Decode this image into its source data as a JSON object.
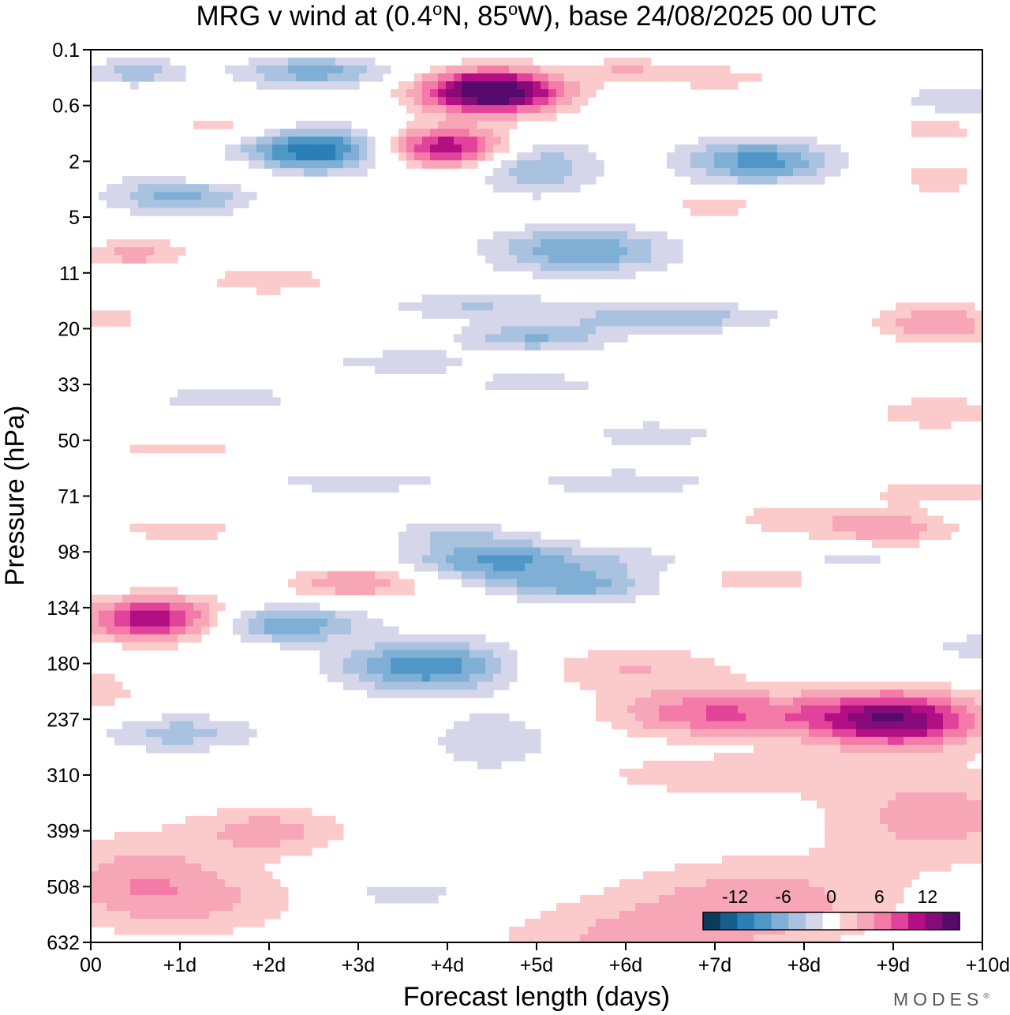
{
  "chart_data": {
    "type": "heatmap",
    "title_parts": {
      "prefix": "MRG v wind at (0.4",
      "deg1": "o",
      "mid": "N, 85",
      "deg2": "o",
      "suffix": "W),  base 24/08/2025  00 UTC"
    },
    "xlabel": "Forecast length (days)",
    "ylabel": "Pressure (hPa)",
    "x_ticks": [
      "00",
      "+1d",
      "+2d",
      "+3d",
      "+4d",
      "+5d",
      "+6d",
      "+7d",
      "+8d",
      "+9d",
      "+10d"
    ],
    "xlim": [
      0,
      10
    ],
    "y_ticks": [
      "0.1",
      "0.6",
      "2",
      "5",
      "11",
      "20",
      "33",
      "50",
      "71",
      "98",
      "134",
      "180",
      "237",
      "310",
      "399",
      "508",
      "632"
    ],
    "colorbar": {
      "labels": [
        "-12",
        "-6",
        "0",
        "6",
        "12"
      ],
      "label_values": [
        -12,
        -6,
        0,
        6,
        12
      ],
      "levels": [
        -16,
        -14,
        -12,
        -10,
        -8,
        -6,
        -4,
        -2,
        2,
        4,
        6,
        8,
        10,
        12,
        14,
        16
      ],
      "colors": [
        "#0b3a5a",
        "#155f8e",
        "#2a7fb6",
        "#4f97c6",
        "#80afd5",
        "#a9c2e0",
        "#d5d6ea",
        "#ffffff",
        "#fbcbcc",
        "#f7a6b8",
        "#f47aa8",
        "#e2439a",
        "#b30e83",
        "#870a79",
        "#550a6c"
      ]
    },
    "features": [
      {
        "x": 4.5,
        "y": 1.5,
        "value": 18,
        "sx": 0.55,
        "sy": 0.55
      },
      {
        "x": 4.0,
        "y": 3.5,
        "value": 12,
        "sx": 0.5,
        "sy": 0.5
      },
      {
        "x": 2.5,
        "y": 3.6,
        "value": -12,
        "sx": 0.55,
        "sy": 0.55
      },
      {
        "x": 2.5,
        "y": 0.8,
        "value": -7,
        "sx": 0.6,
        "sy": 0.4
      },
      {
        "x": 0.5,
        "y": 0.8,
        "value": -5,
        "sx": 0.4,
        "sy": 0.35
      },
      {
        "x": 1.0,
        "y": 5.2,
        "value": -7,
        "sx": 0.55,
        "sy": 0.5
      },
      {
        "x": 0.5,
        "y": 7.3,
        "value": 5,
        "sx": 0.4,
        "sy": 0.35
      },
      {
        "x": 1.5,
        "y": 4.5,
        "value": 4,
        "sx": 0.4,
        "sy": 0.3
      },
      {
        "x": 1.5,
        "y": 2.8,
        "value": 3,
        "sx": 0.5,
        "sy": 0.3
      },
      {
        "x": 5.5,
        "y": 7.2,
        "value": -8,
        "sx": 0.7,
        "sy": 0.6
      },
      {
        "x": 4.3,
        "y": 9.2,
        "value": -4,
        "sx": 0.7,
        "sy": 0.35
      },
      {
        "x": 5.0,
        "y": 4.2,
        "value": -6,
        "sx": 0.5,
        "sy": 0.7
      },
      {
        "x": 7.5,
        "y": 4.0,
        "value": -9,
        "sx": 0.6,
        "sy": 0.55
      },
      {
        "x": 7.0,
        "y": 1.0,
        "value": 3,
        "sx": 0.6,
        "sy": 0.35
      },
      {
        "x": 6.0,
        "y": 0.7,
        "value": 4,
        "sx": 0.3,
        "sy": 0.3
      },
      {
        "x": 9.7,
        "y": 1.8,
        "value": -4,
        "sx": 0.4,
        "sy": 0.4
      },
      {
        "x": 9.5,
        "y": 2.8,
        "value": 3,
        "sx": 0.4,
        "sy": 0.35
      },
      {
        "x": 9.5,
        "y": 4.6,
        "value": 3,
        "sx": 0.4,
        "sy": 0.55
      },
      {
        "x": 7.0,
        "y": 5.6,
        "value": 3,
        "sx": 0.5,
        "sy": 0.3
      },
      {
        "x": 2.0,
        "y": 8.3,
        "value": 4,
        "sx": 0.5,
        "sy": 0.3
      },
      {
        "x": 0.2,
        "y": 9.6,
        "value": 3,
        "sx": 0.3,
        "sy": 0.35
      },
      {
        "x": 6.5,
        "y": 9.6,
        "value": -6,
        "sx": 0.8,
        "sy": 0.35
      },
      {
        "x": 5.0,
        "y": 10.3,
        "value": -6,
        "sx": 0.6,
        "sy": 0.35
      },
      {
        "x": 3.5,
        "y": 11.2,
        "value": -3,
        "sx": 0.7,
        "sy": 0.35
      },
      {
        "x": 9.5,
        "y": 9.8,
        "value": 6,
        "sx": 0.5,
        "sy": 0.5
      },
      {
        "x": 1.5,
        "y": 12.5,
        "value": -3,
        "sx": 0.7,
        "sy": 0.35
      },
      {
        "x": 5.0,
        "y": 12.0,
        "value": -3,
        "sx": 0.6,
        "sy": 0.35
      },
      {
        "x": 6.3,
        "y": 13.8,
        "value": -4,
        "sx": 0.5,
        "sy": 0.3
      },
      {
        "x": 9.5,
        "y": 13.0,
        "value": 4,
        "sx": 0.5,
        "sy": 0.4
      },
      {
        "x": 9.5,
        "y": 15.8,
        "value": 3,
        "sx": 0.6,
        "sy": 0.4
      },
      {
        "x": 1.0,
        "y": 14.3,
        "value": 3,
        "sx": 0.6,
        "sy": 0.3
      },
      {
        "x": 3.0,
        "y": 15.5,
        "value": -3,
        "sx": 0.9,
        "sy": 0.3
      },
      {
        "x": 6.0,
        "y": 15.5,
        "value": -4,
        "sx": 0.7,
        "sy": 0.3
      },
      {
        "x": 9.0,
        "y": 17.2,
        "value": 5,
        "sx": 0.5,
        "sy": 0.4
      },
      {
        "x": 8.0,
        "y": 16.8,
        "value": 3,
        "sx": 0.7,
        "sy": 0.5
      },
      {
        "x": 1.0,
        "y": 17.2,
        "value": 3,
        "sx": 0.6,
        "sy": 0.35
      },
      {
        "x": 4.5,
        "y": 18.3,
        "value": -8,
        "sx": 0.65,
        "sy": 0.55
      },
      {
        "x": 5.5,
        "y": 19.2,
        "value": -7,
        "sx": 0.6,
        "sy": 0.4
      },
      {
        "x": 4.0,
        "y": 17.3,
        "value": -3,
        "sx": 0.5,
        "sy": 0.35
      },
      {
        "x": 3.0,
        "y": 19.1,
        "value": 6,
        "sx": 0.55,
        "sy": 0.4
      },
      {
        "x": 7.5,
        "y": 18.9,
        "value": 3,
        "sx": 0.7,
        "sy": 0.45
      },
      {
        "x": 6.0,
        "y": 18.3,
        "value": -3,
        "sx": 0.8,
        "sy": 0.35
      },
      {
        "x": 8.5,
        "y": 18.3,
        "value": -3,
        "sx": 0.5,
        "sy": 0.3
      },
      {
        "x": 0.7,
        "y": 20.4,
        "value": 12,
        "sx": 0.55,
        "sy": 0.55
      },
      {
        "x": 2.2,
        "y": 20.6,
        "value": -8,
        "sx": 0.6,
        "sy": 0.45
      },
      {
        "x": 3.8,
        "y": 22.1,
        "value": -10,
        "sx": 0.7,
        "sy": 0.65
      },
      {
        "x": 4.5,
        "y": 24.8,
        "value": -4,
        "sx": 0.5,
        "sy": 0.8
      },
      {
        "x": 1.0,
        "y": 24.5,
        "value": -5,
        "sx": 0.65,
        "sy": 0.45
      },
      {
        "x": 9.0,
        "y": 24.0,
        "value": 14,
        "sx": 0.7,
        "sy": 0.7
      },
      {
        "x": 7.0,
        "y": 23.8,
        "value": 8,
        "sx": 0.8,
        "sy": 0.6
      },
      {
        "x": 6.0,
        "y": 22.2,
        "value": 4,
        "sx": 0.9,
        "sy": 0.6
      },
      {
        "x": 9.5,
        "y": 27.5,
        "value": 5,
        "sx": 0.9,
        "sy": 1.2
      },
      {
        "x": 7.5,
        "y": 30.5,
        "value": 5,
        "sx": 1.1,
        "sy": 1.1
      },
      {
        "x": 6.0,
        "y": 32.0,
        "value": 4,
        "sx": 1.1,
        "sy": 1.0
      },
      {
        "x": 0.5,
        "y": 29.8,
        "value": 5,
        "sx": 0.7,
        "sy": 1.2
      },
      {
        "x": 2.0,
        "y": 28.0,
        "value": 5,
        "sx": 0.6,
        "sy": 0.6
      },
      {
        "x": 1.5,
        "y": 30.5,
        "value": 3,
        "sx": 0.8,
        "sy": 0.9
      },
      {
        "x": 3.5,
        "y": 30.3,
        "value": -3,
        "sx": 0.6,
        "sy": 0.45
      },
      {
        "x": 0.1,
        "y": 23.0,
        "value": 3,
        "sx": 0.35,
        "sy": 0.6
      },
      {
        "x": 9.9,
        "y": 21.4,
        "value": -3,
        "sx": 0.35,
        "sy": 0.35
      },
      {
        "x": 7.0,
        "y": 26.0,
        "value": 3,
        "sx": 1.2,
        "sy": 0.6
      }
    ]
  },
  "brand": {
    "name": "MODES",
    "mark": "®"
  }
}
